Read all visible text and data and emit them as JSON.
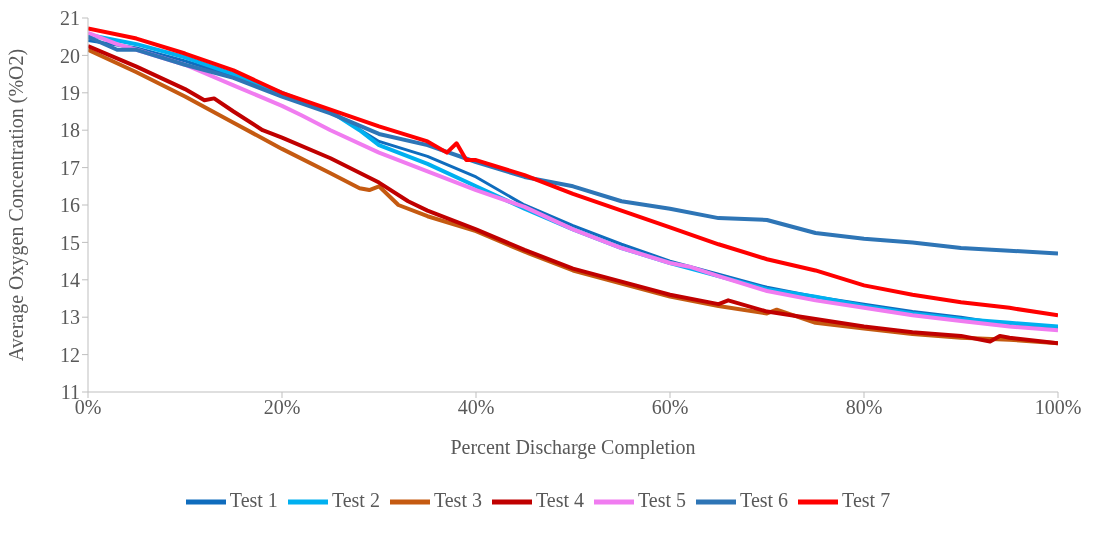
{
  "chart_data": {
    "type": "line",
    "xlabel": "Percent Discharge Completion",
    "ylabel": "Average Oxygen Concentration (%O2)",
    "xlim": [
      0,
      1
    ],
    "xticks": [
      {
        "value": 0,
        "label": "0%"
      },
      {
        "value": 0.2,
        "label": "20%"
      },
      {
        "value": 0.4,
        "label": "40%"
      },
      {
        "value": 0.6,
        "label": "60%"
      },
      {
        "value": 0.8,
        "label": "80%"
      },
      {
        "value": 1,
        "label": "100%"
      }
    ],
    "ylim": [
      11,
      21
    ],
    "yticks": [
      11,
      12,
      13,
      14,
      15,
      16,
      17,
      18,
      19,
      20,
      21
    ],
    "grid": false,
    "legend": "bottom",
    "marker": "none",
    "line_style": "solid",
    "series": [
      {
        "name": "Test 1",
        "color": "#0f6cbd",
        "x": [
          0,
          0.05,
          0.1,
          0.15,
          0.2,
          0.25,
          0.3,
          0.35,
          0.4,
          0.45,
          0.5,
          0.55,
          0.6,
          0.65,
          0.7,
          0.75,
          0.8,
          0.85,
          0.9,
          0.95,
          1
        ],
        "values": [
          20.4,
          20.2,
          19.85,
          19.45,
          19.0,
          18.5,
          17.7,
          17.3,
          16.75,
          16.0,
          15.45,
          14.95,
          14.5,
          14.15,
          13.8,
          13.55,
          13.35,
          13.15,
          13.0,
          12.8,
          12.7
        ]
      },
      {
        "name": "Test 2",
        "color": "#00b0f0",
        "x": [
          0,
          0.05,
          0.1,
          0.15,
          0.2,
          0.25,
          0.28,
          0.3,
          0.35,
          0.4,
          0.45,
          0.5,
          0.55,
          0.6,
          0.65,
          0.7,
          0.75,
          0.8,
          0.85,
          0.9,
          0.95,
          1
        ],
        "values": [
          20.55,
          20.3,
          19.95,
          19.5,
          19.0,
          18.5,
          18.0,
          17.6,
          17.1,
          16.5,
          15.9,
          15.35,
          14.85,
          14.45,
          14.1,
          13.75,
          13.55,
          13.3,
          13.1,
          12.95,
          12.85,
          12.75
        ]
      },
      {
        "name": "Test 3",
        "color": "#c55a11",
        "x": [
          0,
          0.05,
          0.1,
          0.15,
          0.2,
          0.25,
          0.28,
          0.29,
          0.3,
          0.32,
          0.35,
          0.4,
          0.45,
          0.5,
          0.55,
          0.6,
          0.65,
          0.7,
          0.71,
          0.75,
          0.8,
          0.85,
          0.9,
          0.95,
          1
        ],
        "values": [
          20.15,
          19.55,
          18.9,
          18.2,
          17.5,
          16.85,
          16.45,
          16.4,
          16.5,
          16.0,
          15.7,
          15.3,
          14.75,
          14.25,
          13.9,
          13.55,
          13.3,
          13.1,
          13.2,
          12.85,
          12.7,
          12.55,
          12.45,
          12.4,
          12.3
        ]
      },
      {
        "name": "Test 4",
        "color": "#c00000",
        "x": [
          0,
          0.05,
          0.1,
          0.12,
          0.13,
          0.15,
          0.18,
          0.2,
          0.25,
          0.3,
          0.33,
          0.35,
          0.4,
          0.45,
          0.5,
          0.55,
          0.6,
          0.65,
          0.66,
          0.7,
          0.75,
          0.8,
          0.85,
          0.9,
          0.93,
          0.94,
          0.95,
          1
        ],
        "values": [
          20.25,
          19.7,
          19.1,
          18.8,
          18.85,
          18.5,
          18.0,
          17.8,
          17.25,
          16.6,
          16.1,
          15.85,
          15.35,
          14.8,
          14.3,
          13.95,
          13.6,
          13.35,
          13.45,
          13.15,
          12.95,
          12.75,
          12.6,
          12.5,
          12.35,
          12.5,
          12.45,
          12.3
        ]
      },
      {
        "name": "Test 5",
        "color": "#f07cf0",
        "x": [
          0,
          0.03,
          0.05,
          0.1,
          0.15,
          0.2,
          0.22,
          0.25,
          0.3,
          0.35,
          0.4,
          0.45,
          0.5,
          0.55,
          0.6,
          0.62,
          0.65,
          0.7,
          0.75,
          0.8,
          0.85,
          0.9,
          0.95,
          1
        ],
        "values": [
          20.6,
          20.3,
          20.15,
          19.75,
          19.2,
          18.65,
          18.4,
          18.0,
          17.4,
          16.9,
          16.4,
          15.95,
          15.35,
          14.85,
          14.45,
          14.35,
          14.1,
          13.7,
          13.45,
          13.25,
          13.05,
          12.9,
          12.75,
          12.65
        ]
      },
      {
        "name": "Test 6",
        "color": "#2e75b6",
        "x": [
          0,
          0.03,
          0.05,
          0.1,
          0.15,
          0.2,
          0.25,
          0.3,
          0.35,
          0.4,
          0.45,
          0.5,
          0.55,
          0.6,
          0.65,
          0.7,
          0.75,
          0.8,
          0.85,
          0.9,
          0.95,
          1
        ],
        "values": [
          20.5,
          20.15,
          20.15,
          19.75,
          19.4,
          18.9,
          18.45,
          17.9,
          17.6,
          17.15,
          16.75,
          16.5,
          16.1,
          15.9,
          15.65,
          15.6,
          15.25,
          15.1,
          15.0,
          14.85,
          14.78,
          14.7
        ]
      },
      {
        "name": "Test 7",
        "color": "#ff0000",
        "x": [
          0,
          0.05,
          0.1,
          0.15,
          0.2,
          0.25,
          0.3,
          0.35,
          0.37,
          0.38,
          0.39,
          0.4,
          0.45,
          0.5,
          0.55,
          0.6,
          0.65,
          0.7,
          0.75,
          0.8,
          0.85,
          0.9,
          0.95,
          1
        ],
        "values": [
          20.72,
          20.45,
          20.05,
          19.6,
          19.0,
          18.55,
          18.1,
          17.7,
          17.4,
          17.65,
          17.2,
          17.2,
          16.8,
          16.3,
          15.85,
          15.4,
          14.95,
          14.55,
          14.25,
          13.85,
          13.6,
          13.4,
          13.25,
          13.05
        ]
      }
    ]
  }
}
